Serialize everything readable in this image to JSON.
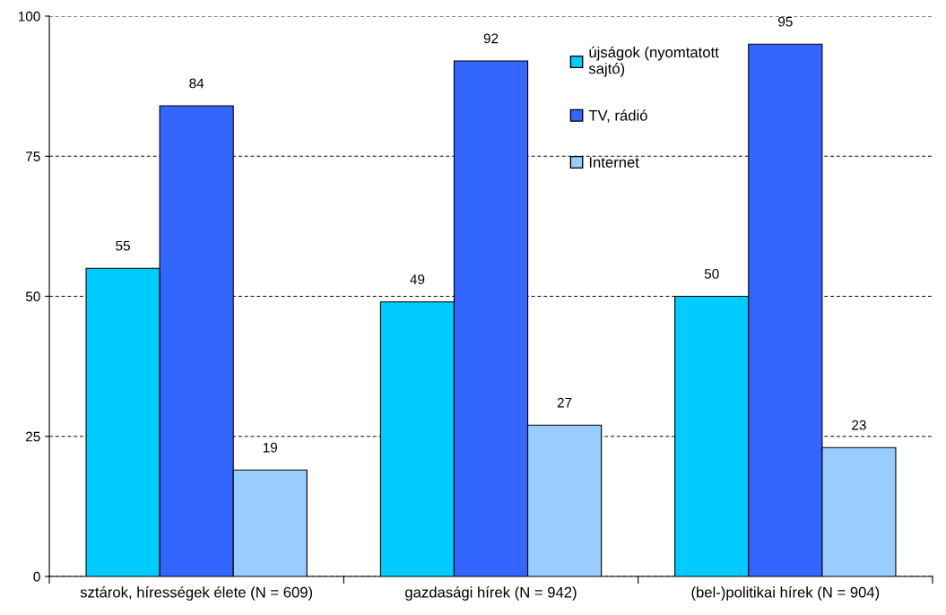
{
  "chart_data": {
    "type": "bar",
    "categories": [
      "sztárok, hírességek élete (N = 609)",
      "gazdasági hírek (N = 942)",
      "(bel-)politikai hírek (N = 904)"
    ],
    "series": [
      {
        "name": "újságok (nyomtatott sajtó)",
        "color": "#00ccff",
        "values": [
          55,
          49,
          50
        ]
      },
      {
        "name": "TV, rádió",
        "color": "#3366ff",
        "values": [
          84,
          92,
          95
        ]
      },
      {
        "name": "Internet",
        "color": "#99ccff",
        "values": [
          19,
          27,
          23
        ]
      }
    ],
    "ylim": [
      0,
      100
    ],
    "yticks": [
      0,
      25,
      50,
      75,
      100
    ],
    "grid": "y",
    "legend": "top right",
    "data_labels": true
  }
}
